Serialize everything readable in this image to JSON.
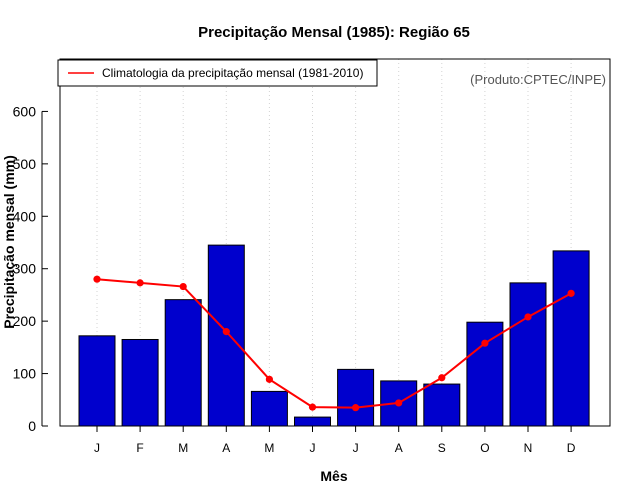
{
  "chart_data": {
    "type": "bar",
    "title": "Precipitação Mensal (1985): Região 65",
    "xlabel": "Mês",
    "ylabel": "Precipitação mensal (mm)",
    "ylim": [
      0,
      700
    ],
    "yticks": [
      0,
      100,
      200,
      300,
      400,
      500,
      600
    ],
    "categories": [
      "J",
      "F",
      "M",
      "A",
      "M",
      "J",
      "J",
      "A",
      "S",
      "O",
      "N",
      "D"
    ],
    "series": [
      {
        "name": "Precipitação mensal (1985)",
        "type": "bar",
        "color": "#0000cd",
        "values": [
          172,
          165,
          241,
          345,
          66,
          17,
          108,
          86,
          80,
          198,
          273,
          334
        ]
      },
      {
        "name": "Climatologia da precipitação mensal (1981-2010)",
        "type": "line",
        "color": "#ff0000",
        "values": [
          280,
          273,
          266,
          180,
          89,
          36,
          35,
          44,
          92,
          158,
          208,
          253
        ]
      }
    ],
    "legend": {
      "position": "top-left",
      "entries": [
        "Climatologia da precipitação mensal (1981-2010)"
      ]
    },
    "annotation": "(Produto:CPTEC/INPE)",
    "grid": "vertical-dotted"
  }
}
